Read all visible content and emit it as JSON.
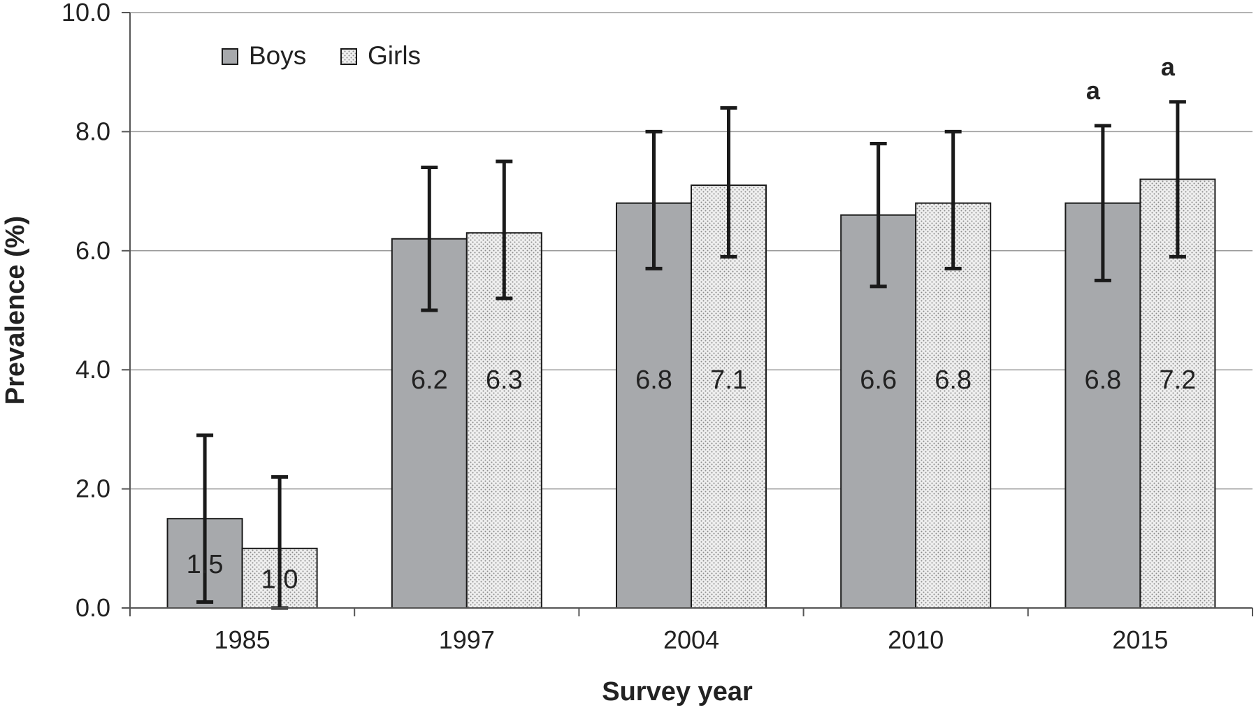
{
  "chart_data": {
    "type": "bar",
    "xlabel": "Survey year",
    "ylabel": "Prevalence (%)",
    "ylim": [
      0,
      10
    ],
    "yticks": [
      "0.0",
      "2.0",
      "4.0",
      "6.0",
      "8.0",
      "10.0"
    ],
    "categories": [
      "1985",
      "1997",
      "2004",
      "2010",
      "2015"
    ],
    "grid": true,
    "legend_position": "top-left",
    "series": [
      {
        "name": "Boys",
        "pattern": "solid",
        "color": "#a7a9ac",
        "values": [
          1.5,
          6.2,
          6.8,
          6.6,
          6.8
        ],
        "labels": [
          "1.5",
          "6.2",
          "6.8",
          "6.6",
          "6.8"
        ],
        "error_low": [
          0.1,
          5.0,
          5.7,
          5.4,
          5.5
        ],
        "error_high": [
          2.9,
          7.4,
          8.0,
          7.8,
          8.1
        ]
      },
      {
        "name": "Girls",
        "pattern": "dotted",
        "color": "#e4e4e4",
        "values": [
          1.0,
          6.3,
          7.1,
          6.8,
          7.2
        ],
        "labels": [
          "1.0",
          "6.3",
          "7.1",
          "6.8",
          "7.2"
        ],
        "error_low": [
          0.0,
          5.2,
          5.9,
          5.7,
          5.9
        ],
        "error_high": [
          2.2,
          7.5,
          8.4,
          8.0,
          8.5
        ]
      }
    ],
    "annotations": [
      {
        "category": "2015",
        "series": "Boys",
        "text": "a"
      },
      {
        "category": "2015",
        "series": "Girls",
        "text": "a"
      }
    ]
  }
}
